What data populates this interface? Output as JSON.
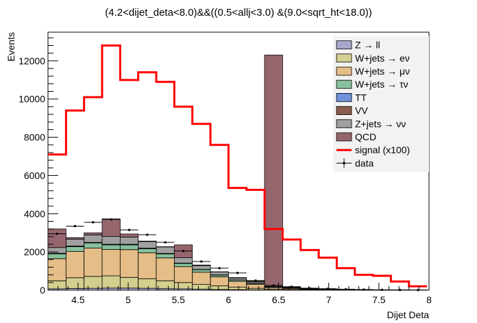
{
  "chart_data": {
    "type": "bar",
    "title": "(4.2<dijet_deta<8.0)&&((0.5<allj<3.0) &(9.0<sqrt_ht<18.0))",
    "xlabel": "Dijet Deta",
    "ylabel": "Events",
    "xlim": [
      4.2,
      8.0
    ],
    "ylim": [
      0,
      13500
    ],
    "xticks": [
      "4.5",
      "5",
      "5.5",
      "6",
      "6.5",
      "7",
      "7.5",
      "8"
    ],
    "xtick_values": [
      4.5,
      5.0,
      5.5,
      6.0,
      6.5,
      7.0,
      7.5,
      8.0
    ],
    "yticks": [
      "0",
      "2000",
      "4000",
      "6000",
      "8000",
      "10000",
      "12000"
    ],
    "ytick_values": [
      0,
      2000,
      4000,
      6000,
      8000,
      10000,
      12000
    ],
    "bin_edges": [
      4.2,
      4.38,
      4.56,
      4.74,
      4.92,
      5.1,
      5.28,
      5.46,
      5.64,
      5.82,
      6.0,
      6.18,
      6.36,
      6.54,
      6.72,
      6.9,
      7.08,
      7.26,
      7.44,
      7.62,
      7.8,
      7.98
    ],
    "legend_position": "top-right",
    "stacks": [
      {
        "name": "Z → ll",
        "color": "#a9a6cc",
        "values": [
          70,
          90,
          100,
          110,
          110,
          100,
          80,
          70,
          50,
          35,
          25,
          15,
          8,
          5,
          3,
          2,
          1,
          1,
          0,
          0,
          0
        ]
      },
      {
        "name": "W+jets → eν",
        "color": "#d3cf8e",
        "values": [
          420,
          560,
          620,
          640,
          560,
          500,
          410,
          330,
          250,
          190,
          130,
          85,
          45,
          30,
          20,
          12,
          8,
          5,
          3,
          2,
          1
        ]
      },
      {
        "name": "W+jets → μν",
        "color": "#e5bd86",
        "values": [
          1160,
          1370,
          1480,
          1380,
          1450,
          1350,
          1200,
          830,
          640,
          475,
          305,
          200,
          85,
          58,
          37,
          24,
          15,
          9,
          6,
          4,
          3
        ]
      },
      {
        "name": "W+jets → τν",
        "color": "#88c19c",
        "values": [
          250,
          260,
          270,
          240,
          250,
          220,
          210,
          170,
          130,
          90,
          70,
          50,
          20,
          15,
          10,
          7,
          5,
          3,
          2,
          1,
          1
        ]
      },
      {
        "name": "TT",
        "color": "#6f8fd9",
        "values": [
          20,
          20,
          20,
          20,
          20,
          18,
          15,
          12,
          10,
          8,
          5,
          4,
          2,
          1,
          1,
          1,
          0,
          0,
          0,
          0,
          0
        ]
      },
      {
        "name": "VV",
        "color": "#8b5b4e",
        "values": [
          10,
          10,
          10,
          10,
          10,
          10,
          8,
          6,
          5,
          4,
          3,
          2,
          1,
          1,
          1,
          0,
          0,
          0,
          0,
          0,
          0
        ]
      },
      {
        "name": "Z+jets → νν",
        "color": "#a0a0a0",
        "values": [
          300,
          360,
          390,
          410,
          380,
          350,
          340,
          280,
          200,
          150,
          100,
          70,
          40,
          30,
          20,
          15,
          10,
          6,
          4,
          3,
          2
        ]
      },
      {
        "name": "QCD",
        "color": "#96666e",
        "values": [
          970,
          80,
          110,
          920,
          160,
          20,
          10,
          670,
          30,
          10,
          20,
          40,
          12100,
          20,
          10,
          5,
          3,
          2,
          1,
          1,
          1
        ]
      }
    ],
    "signal": {
      "name": "signal (x100)",
      "color": "#ff0000",
      "values": [
        7100,
        9400,
        10100,
        12800,
        11000,
        11400,
        10900,
        9600,
        8700,
        7600,
        5350,
        5250,
        3200,
        2650,
        2100,
        1700,
        1150,
        800,
        750,
        450,
        200
      ]
    },
    "data": {
      "name": "data",
      "values": [
        2950,
        3350,
        3550,
        3700,
        3150,
        2900,
        2500,
        2050,
        1500,
        1150,
        900,
        500,
        250,
        180,
        100,
        75,
        45,
        30,
        20,
        10,
        5
      ]
    }
  }
}
